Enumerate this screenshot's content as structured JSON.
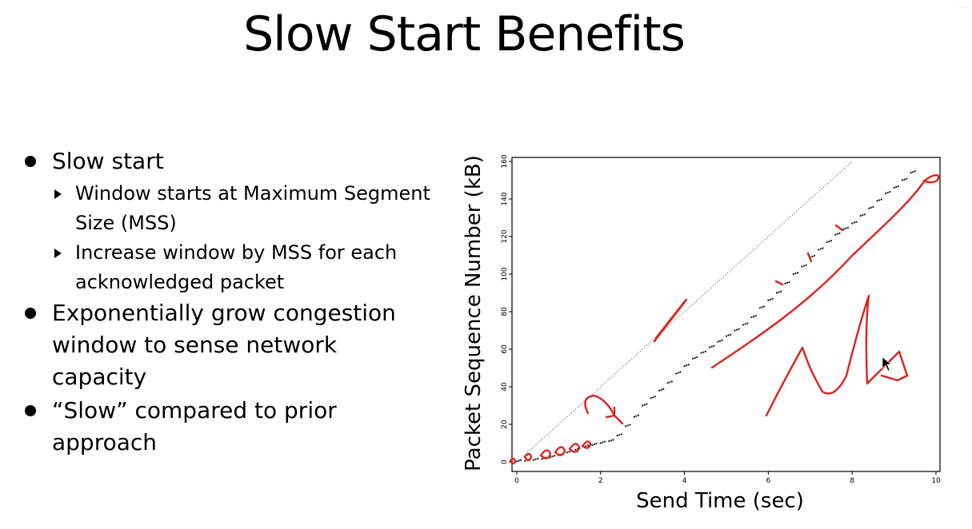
{
  "slide": {
    "title": "Slow Start Benefits",
    "watermark": "…"
  },
  "bullets": [
    {
      "text": "Slow start",
      "sub": [
        "Window starts at Maximum Segment Size (MSS)",
        "Increase window by MSS for each acknowledged packet"
      ]
    },
    {
      "text": "Exponentially grow congestion window to sense network capacity",
      "sub": []
    },
    {
      "text": "“Slow” compared to prior approach",
      "sub": []
    }
  ],
  "chart_data": {
    "type": "scatter",
    "xlabel": "Send Time (sec)",
    "ylabel": "Packet Sequence Number (kB)",
    "xlim": [
      0,
      10
    ],
    "ylim": [
      0,
      160
    ],
    "xticks": [
      0,
      2,
      4,
      6,
      8,
      10
    ],
    "yticks": [
      0,
      20,
      40,
      60,
      80,
      100,
      120,
      140,
      160
    ],
    "grid": false,
    "reference_line": {
      "x": [
        0,
        8
      ],
      "y": [
        0,
        160
      ],
      "style": "dotted"
    },
    "series": [
      {
        "values": [
          [
            0.0,
            0.2
          ],
          [
            0.2,
            0.5
          ],
          [
            0.4,
            1
          ],
          [
            0.6,
            1.5
          ],
          [
            0.8,
            2.5
          ],
          [
            1.0,
            3.5
          ],
          [
            1.2,
            5
          ],
          [
            1.4,
            6.5
          ],
          [
            1.6,
            8
          ],
          [
            1.8,
            9
          ],
          [
            2.0,
            10
          ],
          [
            2.2,
            11
          ],
          [
            2.4,
            14
          ],
          [
            2.6,
            19
          ],
          [
            2.8,
            24
          ],
          [
            3.0,
            30
          ],
          [
            3.2,
            34
          ],
          [
            3.4,
            38
          ],
          [
            3.6,
            42
          ],
          [
            3.8,
            47
          ],
          [
            4.0,
            51
          ],
          [
            4.2,
            55
          ],
          [
            4.4,
            58
          ],
          [
            4.6,
            61
          ],
          [
            4.8,
            64
          ],
          [
            5.0,
            67
          ],
          [
            5.2,
            70
          ],
          [
            5.4,
            73
          ],
          [
            5.6,
            77
          ],
          [
            5.8,
            82
          ],
          [
            6.0,
            86
          ],
          [
            6.2,
            90
          ],
          [
            6.4,
            95
          ],
          [
            6.6,
            100
          ],
          [
            6.8,
            104
          ],
          [
            7.0,
            109
          ],
          [
            7.2,
            113
          ],
          [
            7.4,
            117
          ],
          [
            7.6,
            121
          ],
          [
            7.8,
            124
          ],
          [
            8.0,
            127
          ],
          [
            8.2,
            131
          ],
          [
            8.4,
            135
          ],
          [
            8.6,
            139
          ],
          [
            8.8,
            143
          ],
          [
            9.0,
            146
          ],
          [
            9.2,
            150
          ],
          [
            9.4,
            154
          ]
        ]
      }
    ],
    "annotation_color": "#e02020"
  }
}
